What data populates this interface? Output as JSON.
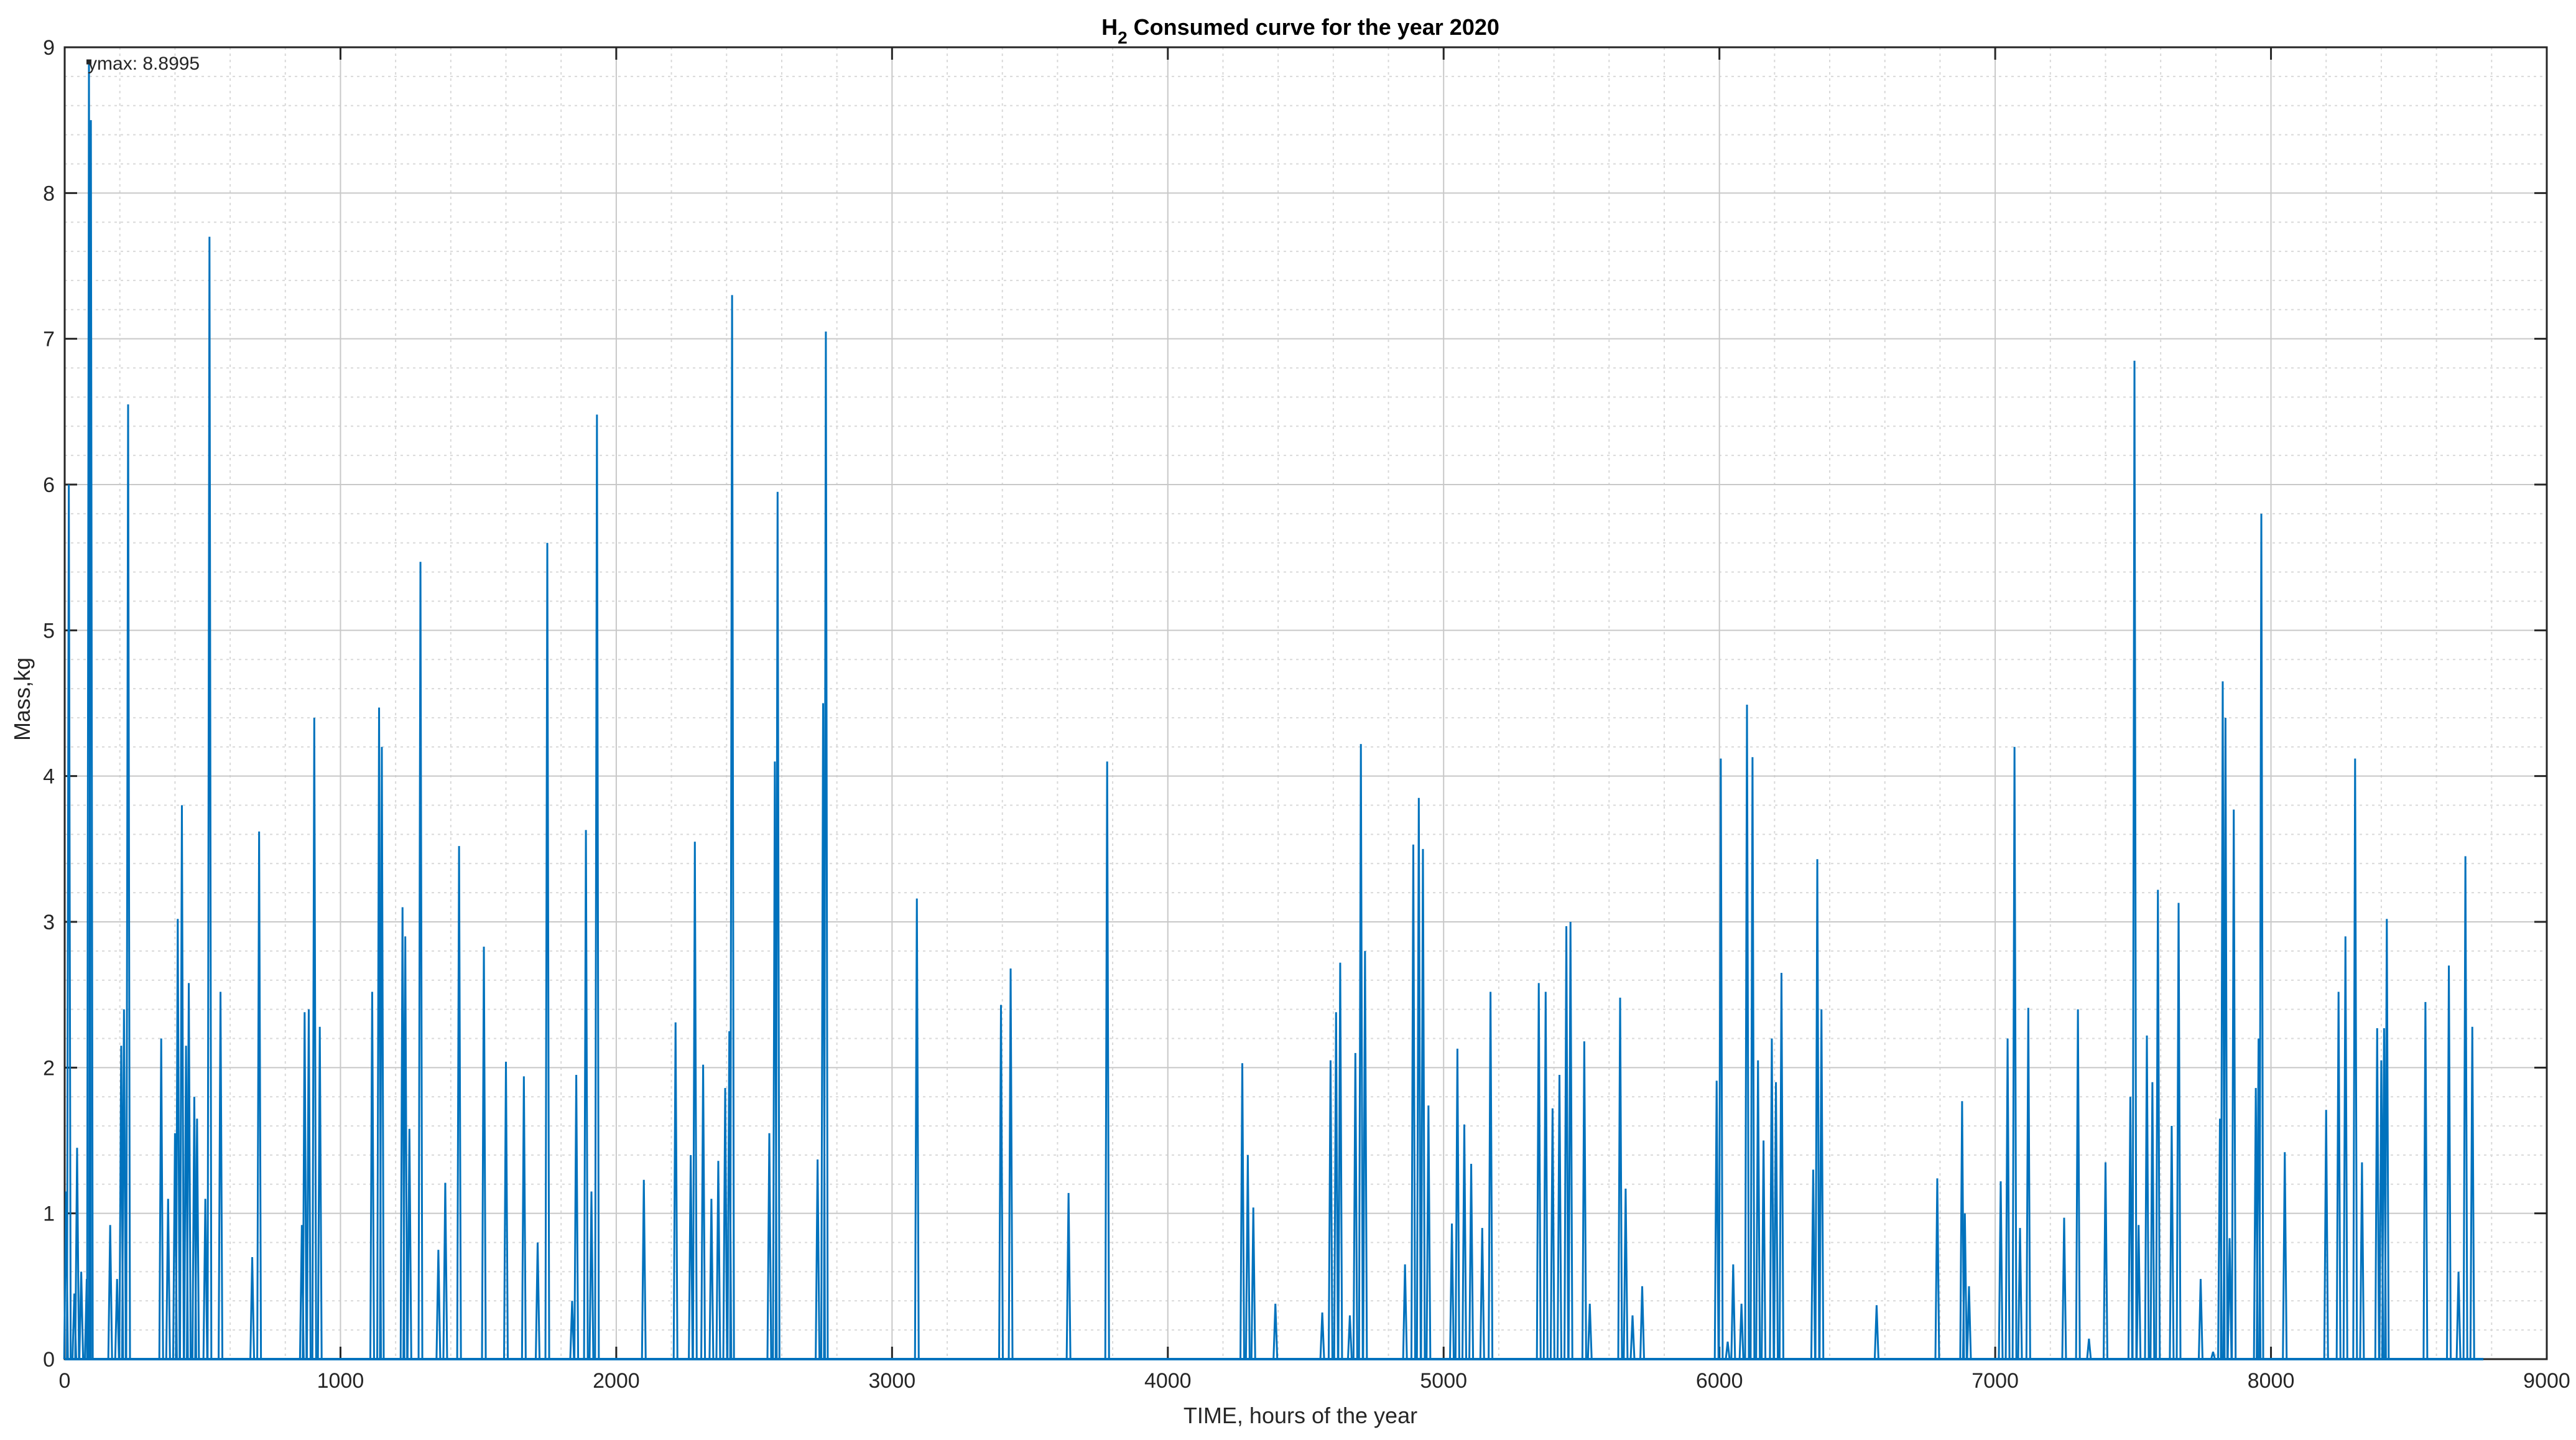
{
  "chart_data": {
    "type": "line",
    "title_main": "H",
    "title_sub": "2",
    "title_rest": " Consumed curve for the year 2020",
    "xlabel": "TIME, hours of the year",
    "ylabel": "Mass,kg",
    "xlim": [
      0,
      9000
    ],
    "ylim": [
      0,
      9
    ],
    "grid": true,
    "minor_grid": true,
    "x_ticks": [
      0,
      1000,
      2000,
      3000,
      4000,
      5000,
      6000,
      7000,
      8000,
      9000
    ],
    "y_ticks": [
      0,
      1,
      2,
      3,
      4,
      5,
      6,
      7,
      8,
      9
    ],
    "annotation": "ymax: 8.8995",
    "ymax": 8.8995,
    "series": [
      {
        "color": "#0072bd",
        "spikes": [
          [
            5,
            1.15
          ],
          [
            15,
            6.0
          ],
          [
            35,
            0.45
          ],
          [
            45,
            1.45
          ],
          [
            60,
            0.6
          ],
          [
            80,
            0.55
          ],
          [
            88,
            8.8995
          ],
          [
            95,
            8.5
          ],
          [
            165,
            0.92
          ],
          [
            190,
            0.55
          ],
          [
            205,
            2.15
          ],
          [
            215,
            2.4
          ],
          [
            230,
            6.55
          ],
          [
            350,
            2.2
          ],
          [
            375,
            1.1
          ],
          [
            400,
            1.55
          ],
          [
            410,
            3.02
          ],
          [
            425,
            3.8
          ],
          [
            440,
            2.15
          ],
          [
            450,
            2.58
          ],
          [
            470,
            1.8
          ],
          [
            480,
            1.65
          ],
          [
            510,
            1.1
          ],
          [
            525,
            7.7
          ],
          [
            565,
            2.52
          ],
          [
            680,
            0.7
          ],
          [
            705,
            3.62
          ],
          [
            860,
            0.92
          ],
          [
            870,
            2.38
          ],
          [
            885,
            2.4
          ],
          [
            905,
            4.4
          ],
          [
            925,
            2.28
          ],
          [
            1115,
            2.52
          ],
          [
            1140,
            4.47
          ],
          [
            1150,
            4.2
          ],
          [
            1225,
            3.1
          ],
          [
            1235,
            2.9
          ],
          [
            1250,
            1.58
          ],
          [
            1290,
            5.47
          ],
          [
            1355,
            0.75
          ],
          [
            1380,
            1.21
          ],
          [
            1430,
            3.52
          ],
          [
            1520,
            2.83
          ],
          [
            1600,
            2.04
          ],
          [
            1665,
            1.94
          ],
          [
            1715,
            0.8
          ],
          [
            1750,
            5.6
          ],
          [
            1840,
            0.4
          ],
          [
            1855,
            1.95
          ],
          [
            1890,
            3.63
          ],
          [
            1910,
            1.15
          ],
          [
            1930,
            6.48
          ],
          [
            2100,
            1.23
          ],
          [
            2215,
            2.31
          ],
          [
            2270,
            1.4
          ],
          [
            2285,
            3.55
          ],
          [
            2315,
            2.02
          ],
          [
            2345,
            1.1
          ],
          [
            2370,
            1.36
          ],
          [
            2395,
            1.86
          ],
          [
            2410,
            2.25
          ],
          [
            2420,
            7.3
          ],
          [
            2555,
            1.55
          ],
          [
            2575,
            4.1
          ],
          [
            2585,
            5.95
          ],
          [
            2730,
            1.37
          ],
          [
            2750,
            4.5
          ],
          [
            2760,
            7.05
          ],
          [
            3090,
            3.16
          ],
          [
            3395,
            2.43
          ],
          [
            3430,
            2.68
          ],
          [
            3640,
            1.14
          ],
          [
            3780,
            4.1
          ],
          [
            4270,
            2.03
          ],
          [
            4290,
            1.4
          ],
          [
            4310,
            1.04
          ],
          [
            4390,
            0.38
          ],
          [
            4560,
            0.32
          ],
          [
            4590,
            2.05
          ],
          [
            4610,
            2.38
          ],
          [
            4625,
            2.72
          ],
          [
            4660,
            0.3
          ],
          [
            4680,
            2.1
          ],
          [
            4700,
            4.22
          ],
          [
            4715,
            2.8
          ],
          [
            4860,
            0.65
          ],
          [
            4890,
            3.53
          ],
          [
            4910,
            3.85
          ],
          [
            4925,
            3.5
          ],
          [
            4945,
            1.74
          ],
          [
            5030,
            0.93
          ],
          [
            5050,
            2.13
          ],
          [
            5075,
            1.61
          ],
          [
            5100,
            1.34
          ],
          [
            5140,
            0.9
          ],
          [
            5170,
            2.52
          ],
          [
            5345,
            2.58
          ],
          [
            5370,
            2.52
          ],
          [
            5395,
            1.72
          ],
          [
            5420,
            1.95
          ],
          [
            5445,
            2.97
          ],
          [
            5460,
            3.0
          ],
          [
            5510,
            2.18
          ],
          [
            5530,
            0.38
          ],
          [
            5640,
            2.48
          ],
          [
            5660,
            1.17
          ],
          [
            5685,
            0.3
          ],
          [
            5720,
            0.5
          ],
          [
            5990,
            1.91
          ],
          [
            6005,
            4.12
          ],
          [
            6030,
            0.12
          ],
          [
            6050,
            0.65
          ],
          [
            6080,
            0.38
          ],
          [
            6100,
            4.49
          ],
          [
            6120,
            4.13
          ],
          [
            6140,
            2.05
          ],
          [
            6160,
            1.5
          ],
          [
            6190,
            2.2
          ],
          [
            6205,
            1.9
          ],
          [
            6225,
            2.65
          ],
          [
            6340,
            1.3
          ],
          [
            6355,
            3.43
          ],
          [
            6370,
            2.4
          ],
          [
            6570,
            0.37
          ],
          [
            6790,
            1.24
          ],
          [
            6880,
            1.77
          ],
          [
            6890,
            1.0
          ],
          [
            6905,
            0.5
          ],
          [
            7020,
            1.22
          ],
          [
            7045,
            2.2
          ],
          [
            7070,
            4.2
          ],
          [
            7090,
            0.9
          ],
          [
            7120,
            2.41
          ],
          [
            7250,
            0.97
          ],
          [
            7300,
            2.4
          ],
          [
            7340,
            0.14
          ],
          [
            7400,
            1.35
          ],
          [
            7490,
            1.8
          ],
          [
            7505,
            6.85
          ],
          [
            7520,
            0.92
          ],
          [
            7550,
            2.22
          ],
          [
            7570,
            1.9
          ],
          [
            7590,
            3.22
          ],
          [
            7640,
            1.6
          ],
          [
            7665,
            3.13
          ],
          [
            7745,
            0.55
          ],
          [
            7790,
            0.05
          ],
          [
            7815,
            1.65
          ],
          [
            7825,
            4.65
          ],
          [
            7835,
            4.4
          ],
          [
            7850,
            0.83
          ],
          [
            7865,
            3.77
          ],
          [
            7945,
            1.86
          ],
          [
            7955,
            2.2
          ],
          [
            7965,
            5.8
          ],
          [
            8050,
            1.42
          ],
          [
            8200,
            1.71
          ],
          [
            8245,
            2.52
          ],
          [
            8270,
            2.9
          ],
          [
            8305,
            4.12
          ],
          [
            8330,
            1.35
          ],
          [
            8385,
            2.27
          ],
          [
            8400,
            2.05
          ],
          [
            8410,
            2.27
          ],
          [
            8420,
            3.02
          ],
          [
            8560,
            2.45
          ],
          [
            8645,
            2.7
          ],
          [
            8680,
            0.6
          ],
          [
            8705,
            3.45
          ],
          [
            8730,
            2.28
          ]
        ]
      }
    ]
  }
}
